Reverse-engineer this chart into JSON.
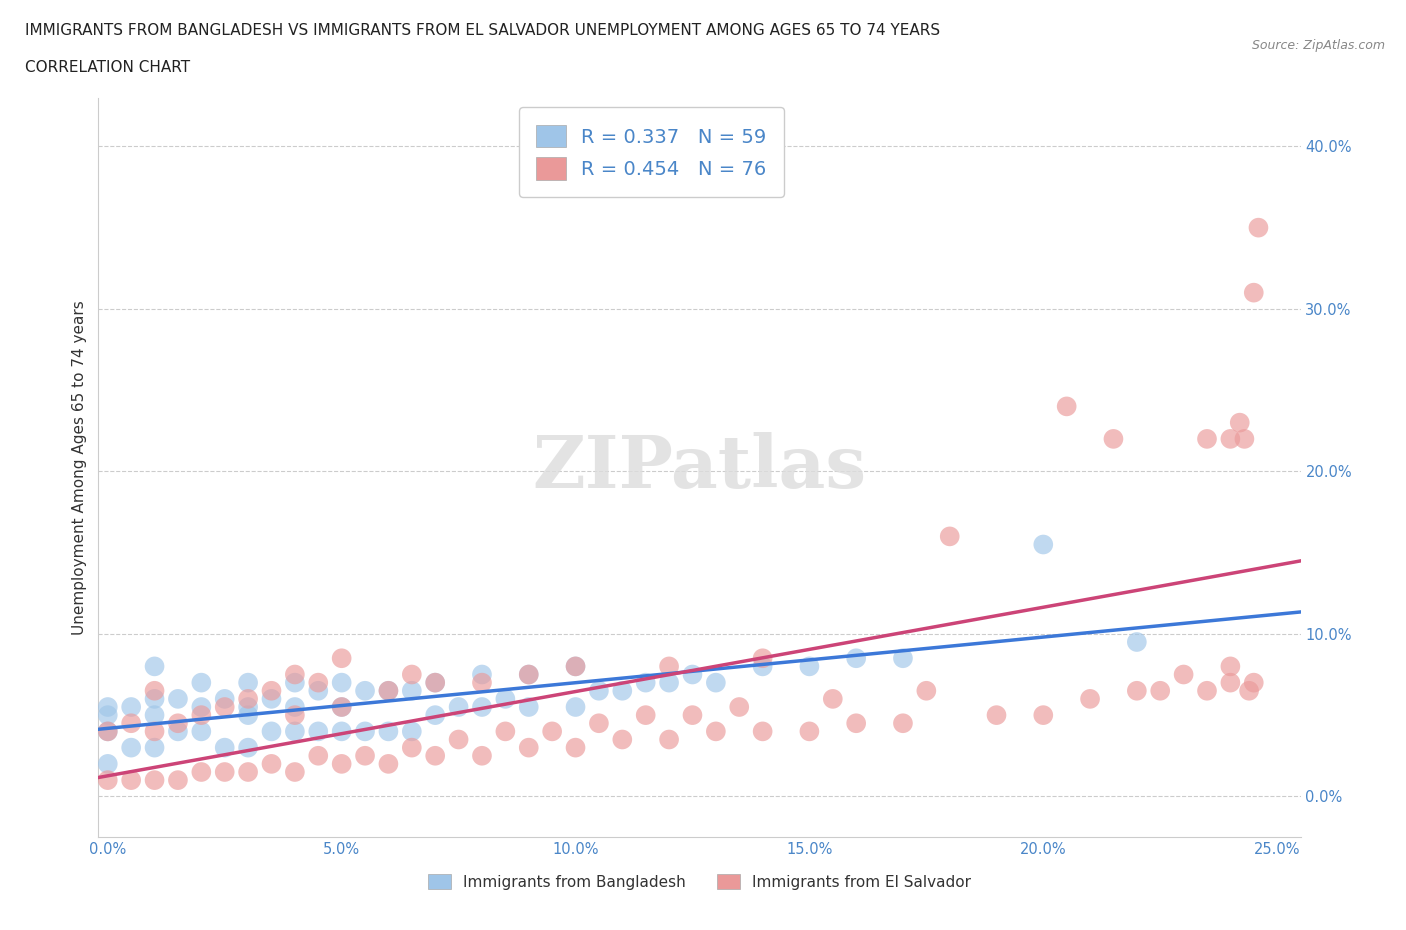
{
  "title_line1": "IMMIGRANTS FROM BANGLADESH VS IMMIGRANTS FROM EL SALVADOR UNEMPLOYMENT AMONG AGES 65 TO 74 YEARS",
  "title_line2": "CORRELATION CHART",
  "source": "Source: ZipAtlas.com",
  "ylabel": "Unemployment Among Ages 65 to 74 years",
  "xlim": [
    -0.002,
    0.255
  ],
  "ylim": [
    -0.025,
    0.43
  ],
  "xticks": [
    0.0,
    0.05,
    0.1,
    0.15,
    0.2,
    0.25
  ],
  "yticks": [
    0.0,
    0.1,
    0.2,
    0.3,
    0.4
  ],
  "xtick_labels": [
    "0.0%",
    "5.0%",
    "10.0%",
    "15.0%",
    "20.0%",
    "25.0%"
  ],
  "ytick_labels": [
    "0.0%",
    "10.0%",
    "20.0%",
    "30.0%",
    "40.0%"
  ],
  "color_bangladesh": "#9fc5e8",
  "color_elsalvador": "#ea9999",
  "line_color_bangladesh": "#3c78d8",
  "line_color_elsalvador": "#cc4477",
  "R_bangladesh": 0.337,
  "N_bangladesh": 59,
  "R_elsalvador": 0.454,
  "N_elsalvador": 76,
  "watermark": "ZIPatlas",
  "legend_label_bangladesh": "Immigrants from Bangladesh",
  "legend_label_elsalvador": "Immigrants from El Salvador",
  "bangladesh_x": [
    0.0,
    0.0,
    0.0,
    0.0,
    0.005,
    0.005,
    0.01,
    0.01,
    0.01,
    0.01,
    0.015,
    0.015,
    0.02,
    0.02,
    0.02,
    0.025,
    0.025,
    0.03,
    0.03,
    0.03,
    0.03,
    0.035,
    0.035,
    0.04,
    0.04,
    0.04,
    0.045,
    0.045,
    0.05,
    0.05,
    0.05,
    0.055,
    0.055,
    0.06,
    0.06,
    0.065,
    0.065,
    0.07,
    0.07,
    0.075,
    0.08,
    0.08,
    0.085,
    0.09,
    0.09,
    0.1,
    0.1,
    0.105,
    0.11,
    0.115,
    0.12,
    0.125,
    0.13,
    0.14,
    0.15,
    0.16,
    0.17,
    0.2,
    0.22
  ],
  "bangladesh_y": [
    0.02,
    0.04,
    0.05,
    0.055,
    0.03,
    0.055,
    0.03,
    0.05,
    0.06,
    0.08,
    0.04,
    0.06,
    0.04,
    0.055,
    0.07,
    0.03,
    0.06,
    0.03,
    0.05,
    0.07,
    0.055,
    0.04,
    0.06,
    0.04,
    0.055,
    0.07,
    0.04,
    0.065,
    0.04,
    0.055,
    0.07,
    0.04,
    0.065,
    0.04,
    0.065,
    0.04,
    0.065,
    0.05,
    0.07,
    0.055,
    0.055,
    0.075,
    0.06,
    0.055,
    0.075,
    0.055,
    0.08,
    0.065,
    0.065,
    0.07,
    0.07,
    0.075,
    0.07,
    0.08,
    0.08,
    0.085,
    0.085,
    0.155,
    0.095
  ],
  "elsalvador_x": [
    0.0,
    0.0,
    0.005,
    0.005,
    0.01,
    0.01,
    0.01,
    0.015,
    0.015,
    0.02,
    0.02,
    0.025,
    0.025,
    0.03,
    0.03,
    0.035,
    0.035,
    0.04,
    0.04,
    0.04,
    0.045,
    0.045,
    0.05,
    0.05,
    0.05,
    0.055,
    0.06,
    0.06,
    0.065,
    0.065,
    0.07,
    0.07,
    0.075,
    0.08,
    0.08,
    0.085,
    0.09,
    0.09,
    0.095,
    0.1,
    0.1,
    0.105,
    0.11,
    0.115,
    0.12,
    0.12,
    0.125,
    0.13,
    0.135,
    0.14,
    0.14,
    0.15,
    0.155,
    0.16,
    0.17,
    0.175,
    0.18,
    0.19,
    0.2,
    0.205,
    0.21,
    0.215,
    0.22,
    0.225,
    0.23,
    0.235,
    0.235,
    0.24,
    0.24,
    0.24,
    0.242,
    0.243,
    0.244,
    0.245,
    0.245,
    0.246
  ],
  "elsalvador_y": [
    0.01,
    0.04,
    0.01,
    0.045,
    0.01,
    0.04,
    0.065,
    0.01,
    0.045,
    0.015,
    0.05,
    0.015,
    0.055,
    0.015,
    0.06,
    0.02,
    0.065,
    0.015,
    0.05,
    0.075,
    0.025,
    0.07,
    0.02,
    0.055,
    0.085,
    0.025,
    0.02,
    0.065,
    0.03,
    0.075,
    0.025,
    0.07,
    0.035,
    0.025,
    0.07,
    0.04,
    0.03,
    0.075,
    0.04,
    0.03,
    0.08,
    0.045,
    0.035,
    0.05,
    0.035,
    0.08,
    0.05,
    0.04,
    0.055,
    0.04,
    0.085,
    0.04,
    0.06,
    0.045,
    0.045,
    0.065,
    0.16,
    0.05,
    0.05,
    0.24,
    0.06,
    0.22,
    0.065,
    0.065,
    0.075,
    0.065,
    0.22,
    0.07,
    0.22,
    0.08,
    0.23,
    0.22,
    0.065,
    0.31,
    0.07,
    0.35
  ]
}
